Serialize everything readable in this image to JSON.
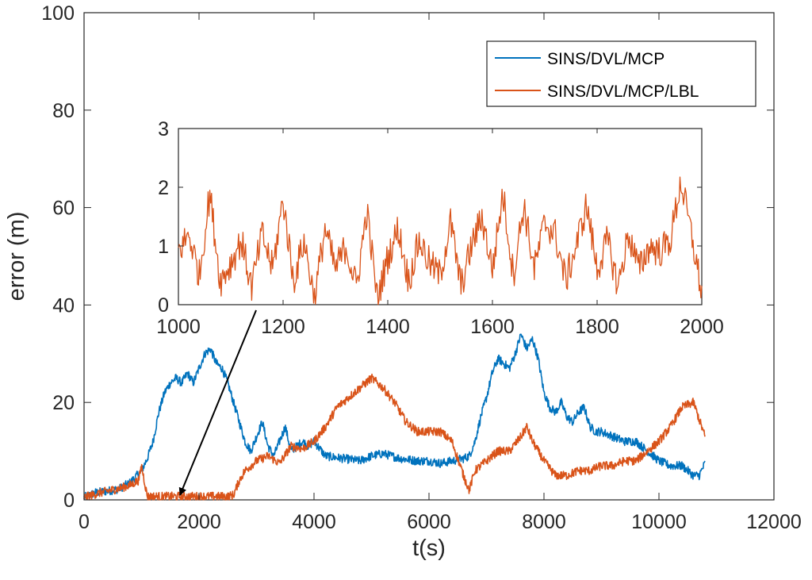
{
  "colors": {
    "series1": "#0072BD",
    "series2": "#D95319",
    "axis": "#262626",
    "arrow": "#000000"
  },
  "chart_data": [
    {
      "id": "main",
      "type": "line",
      "xlabel": "t(s)",
      "ylabel": "error (m)",
      "xlim": [
        0,
        12000
      ],
      "ylim": [
        0,
        100
      ],
      "xticks": [
        0,
        2000,
        4000,
        6000,
        8000,
        10000,
        12000
      ],
      "yticks": [
        0,
        20,
        40,
        60,
        80,
        100
      ],
      "legend_position": "top-right",
      "series": [
        {
          "name": "SINS/DVL/MCP",
          "color": "#0072BD",
          "x": [
            0,
            200,
            400,
            600,
            800,
            1000,
            1100,
            1200,
            1300,
            1400,
            1500,
            1600,
            1700,
            1800,
            1900,
            2000,
            2100,
            2200,
            2300,
            2400,
            2500,
            2600,
            2700,
            2800,
            2900,
            3000,
            3100,
            3200,
            3300,
            3400,
            3500,
            3600,
            3700,
            3800,
            3900,
            4000,
            4200,
            4500,
            4800,
            5000,
            5200,
            5500,
            5800,
            6000,
            6200,
            6400,
            6600,
            6700,
            6800,
            6900,
            7000,
            7100,
            7200,
            7300,
            7400,
            7500,
            7600,
            7700,
            7800,
            7900,
            8000,
            8100,
            8200,
            8300,
            8400,
            8500,
            8600,
            8700,
            8800,
            8900,
            9000,
            9200,
            9400,
            9600,
            9800,
            10000,
            10200,
            10400,
            10600,
            10700,
            10800
          ],
          "y": [
            0.5,
            1.5,
            1.8,
            2.2,
            3.5,
            6,
            8.5,
            12,
            18,
            22,
            24,
            25,
            24,
            26,
            24,
            27,
            30,
            31,
            28,
            27,
            24,
            20,
            16,
            12,
            10,
            13,
            16,
            11,
            9,
            12,
            15,
            10,
            11,
            12,
            11,
            12,
            9,
            8.5,
            8,
            9,
            9.5,
            8.5,
            8,
            8,
            7.5,
            8,
            8.5,
            9,
            12,
            17,
            21,
            26,
            29,
            28,
            27,
            30,
            34,
            31,
            33,
            29,
            22,
            19,
            18,
            20,
            17,
            16,
            18,
            19,
            15,
            14,
            14,
            13,
            12,
            12,
            10,
            8,
            7,
            7,
            5,
            5,
            7.5
          ]
        },
        {
          "name": "SINS/DVL/MCP/LBL",
          "color": "#D95319",
          "x": [
            0,
            200,
            400,
            600,
            800,
            950,
            1000,
            1100,
            1500,
            2000,
            2500,
            2600,
            2650,
            2700,
            2800,
            3000,
            3200,
            3400,
            3600,
            3800,
            4000,
            4200,
            4400,
            4600,
            4800,
            5000,
            5200,
            5400,
            5600,
            5800,
            6000,
            6200,
            6400,
            6600,
            6700,
            6800,
            7000,
            7200,
            7400,
            7600,
            7700,
            7800,
            7900,
            8000,
            8200,
            8400,
            8600,
            8800,
            9000,
            9200,
            9400,
            9600,
            9800,
            10000,
            10200,
            10400,
            10600,
            10800
          ],
          "y": [
            0.5,
            1.2,
            1.8,
            2.3,
            3,
            4,
            7,
            0.7,
            0.7,
            0.7,
            0.7,
            1,
            2.5,
            4,
            6,
            8,
            9,
            7.5,
            11,
            10.5,
            12,
            15,
            19,
            21,
            23,
            25,
            23,
            20,
            16,
            14,
            14,
            14,
            12,
            5,
            2,
            6,
            8,
            10,
            10,
            13,
            15,
            12,
            10,
            8,
            5,
            5,
            6,
            6,
            7,
            7,
            8,
            8,
            10,
            12,
            15,
            19,
            20,
            13
          ]
        }
      ]
    },
    {
      "id": "inset",
      "type": "line",
      "xlim": [
        1000,
        2000
      ],
      "ylim": [
        0,
        3
      ],
      "xticks": [
        1000,
        1200,
        1400,
        1600,
        1800,
        2000
      ],
      "yticks": [
        0,
        1,
        2,
        3
      ],
      "note": "zoom of SINS/DVL/MCP/LBL error between t=1000 s and t=2000 s",
      "series": [
        {
          "name": "SINS/DVL/MCP/LBL",
          "color": "#D95319",
          "x": [
            1000,
            1020,
            1040,
            1060,
            1080,
            1100,
            1120,
            1140,
            1160,
            1180,
            1200,
            1220,
            1240,
            1260,
            1280,
            1300,
            1320,
            1340,
            1360,
            1380,
            1400,
            1420,
            1440,
            1460,
            1480,
            1500,
            1520,
            1540,
            1560,
            1580,
            1600,
            1620,
            1640,
            1660,
            1680,
            1700,
            1720,
            1740,
            1760,
            1780,
            1800,
            1820,
            1840,
            1860,
            1880,
            1900,
            1920,
            1940,
            1960,
            1980,
            2000
          ],
          "y": [
            0.9,
            1.2,
            0.5,
            1.9,
            0.4,
            0.7,
            1.1,
            0.3,
            1.2,
            0.6,
            1.8,
            0.4,
            1.1,
            0.1,
            1.3,
            0.6,
            1.0,
            0.3,
            1.6,
            0.1,
            0.8,
            1.3,
            0.4,
            1.1,
            0.7,
            0.5,
            1.4,
            0.3,
            1.0,
            1.5,
            0.6,
            1.9,
            0.5,
            1.7,
            0.6,
            1.4,
            1.2,
            0.4,
            1.0,
            1.7,
            0.6,
            1.1,
            0.3,
            1.2,
            0.6,
            1.0,
            0.9,
            1.1,
            2.1,
            1.2,
            0.2
          ]
        }
      ]
    }
  ]
}
